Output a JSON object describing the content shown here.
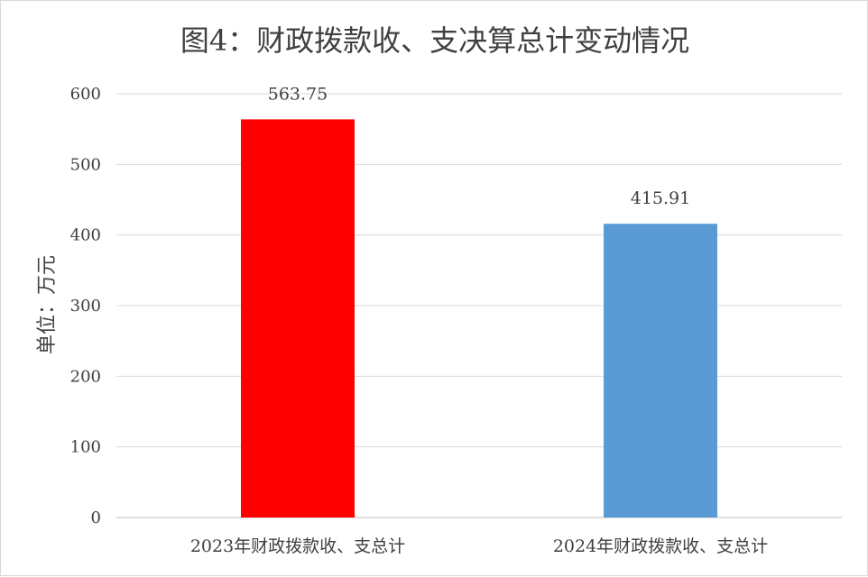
{
  "chart_data": {
    "type": "bar",
    "title": "图4：财政拨款收、支决算总计变动情况",
    "xlabel": "",
    "ylabel": "单位：万元",
    "categories": [
      "2023年财政拨款收、支总计",
      "2024年财政拨款收、支总计"
    ],
    "values": [
      563.75,
      415.91
    ],
    "data_labels": [
      "563.75",
      "415.91"
    ],
    "bar_colors": [
      "#ff0000",
      "#5b9bd5"
    ],
    "ylim": [
      0,
      600
    ],
    "yticks": [
      0,
      100,
      200,
      300,
      400,
      500,
      600
    ],
    "ytick_labels": [
      "0",
      "100",
      "200",
      "300",
      "400",
      "500",
      "600"
    ],
    "grid": true,
    "legend": "none"
  }
}
